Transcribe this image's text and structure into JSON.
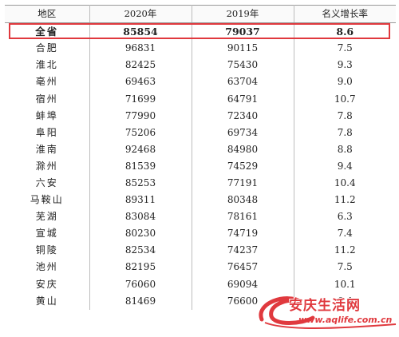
{
  "table": {
    "headers": [
      "地区",
      "2020年",
      "2019年",
      "名义增长率"
    ],
    "rows": [
      [
        "全省",
        "85854",
        "79037",
        "8.6"
      ],
      [
        "合肥",
        "96831",
        "90115",
        "7.5"
      ],
      [
        "淮北",
        "82425",
        "75430",
        "9.3"
      ],
      [
        "亳州",
        "69463",
        "63704",
        "9.0"
      ],
      [
        "宿州",
        "71699",
        "64791",
        "10.7"
      ],
      [
        "蚌埠",
        "77990",
        "72340",
        "7.8"
      ],
      [
        "阜阳",
        "75206",
        "69734",
        "7.8"
      ],
      [
        "淮南",
        "92468",
        "84980",
        "8.8"
      ],
      [
        "滁州",
        "81539",
        "74529",
        "9.4"
      ],
      [
        "六安",
        "85253",
        "77191",
        "10.4"
      ],
      [
        "马鞍山",
        "89311",
        "80348",
        "11.2"
      ],
      [
        "芜湖",
        "83084",
        "78161",
        "6.3"
      ],
      [
        "宣城",
        "80230",
        "74719",
        "7.4"
      ],
      [
        "铜陵",
        "82534",
        "74237",
        "11.2"
      ],
      [
        "池州",
        "82195",
        "76457",
        "7.5"
      ],
      [
        "安庆",
        "76060",
        "69094",
        "10.1"
      ],
      [
        "黄山",
        "81469",
        "76600",
        "6.4"
      ]
    ]
  },
  "watermark": {
    "title": "安庆生活网",
    "url": "www.aqlife.com.cn",
    "color": "#e0393e"
  },
  "highlight_color": "#e0393e"
}
